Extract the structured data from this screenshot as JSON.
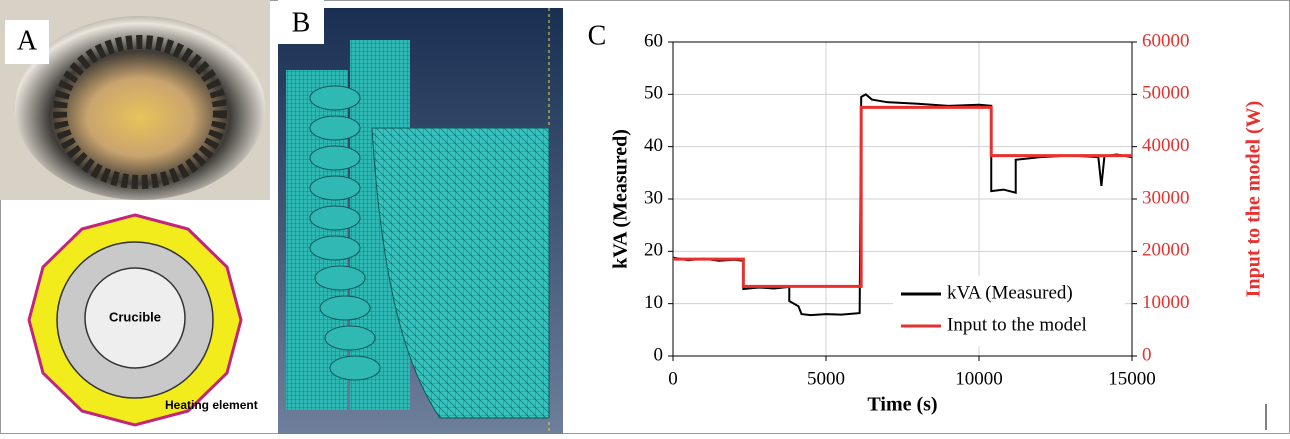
{
  "panels": {
    "a": "A",
    "b": "B",
    "c": "C"
  },
  "diagram": {
    "center_label": "Crucible",
    "ring_label": "Heating element"
  },
  "chart_data": {
    "type": "line",
    "xlabel": "Time (s)",
    "ylabel": "kVA (Measured)",
    "y2label": "Input to the model (W)",
    "xlim": [
      0,
      15000
    ],
    "xticks": [
      0,
      5000,
      10000,
      15000
    ],
    "ylim": [
      0,
      60
    ],
    "yticks": [
      0,
      10,
      20,
      30,
      40,
      50,
      60
    ],
    "y2lim": [
      0,
      60000
    ],
    "y2ticks": [
      0,
      10000,
      20000,
      30000,
      40000,
      50000,
      60000
    ],
    "grid": true,
    "legend": "lower right",
    "series": [
      {
        "name": "kVA (Measured)",
        "color": "#000000",
        "x": [
          0,
          500,
          1000,
          1500,
          2000,
          2300,
          2300,
          2800,
          3300,
          3800,
          3800,
          4100,
          4200,
          4500,
          5000,
          5500,
          6100,
          6150,
          6300,
          6500,
          7000,
          8000,
          9000,
          10000,
          10400,
          10400,
          10800,
          11200,
          11200,
          12000,
          13000,
          13900,
          14000,
          14100,
          14500,
          15000
        ],
        "values": [
          18.8,
          18.3,
          18.6,
          18.2,
          18.4,
          18.2,
          12.8,
          13.1,
          12.9,
          13.2,
          10.5,
          9.5,
          8.0,
          7.8,
          8.0,
          7.9,
          8.2,
          49.5,
          50.0,
          49.0,
          48.5,
          48.2,
          47.8,
          48.0,
          47.8,
          31.5,
          31.8,
          31.2,
          37.5,
          38.0,
          38.3,
          38.0,
          32.5,
          38.2,
          38.5,
          38.0
        ]
      },
      {
        "name": "Input to the model",
        "color": "#e8312f",
        "axis": "y2",
        "x": [
          0,
          2300,
          2300,
          6150,
          6150,
          10400,
          10400,
          15000
        ],
        "values": [
          18500,
          18500,
          13300,
          13300,
          47500,
          47500,
          38300,
          38300
        ]
      }
    ]
  }
}
